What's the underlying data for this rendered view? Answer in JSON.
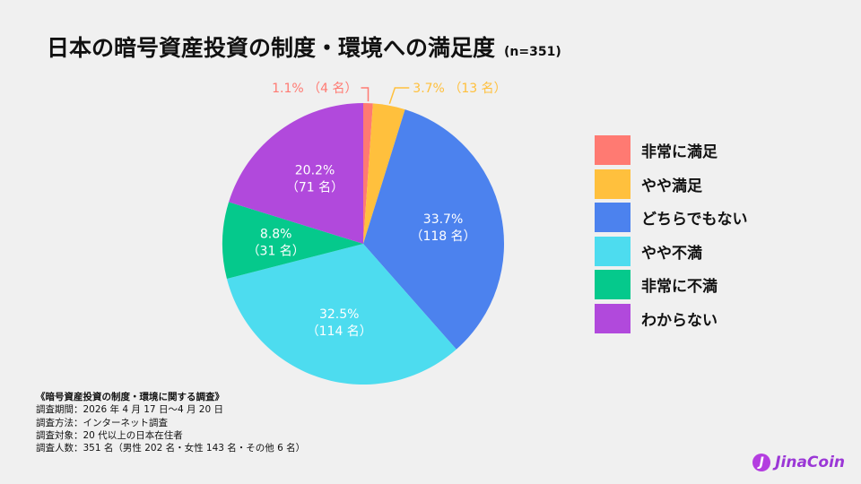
{
  "title": "日本の暗号資産投資の制度・環境への満足度",
  "sample": "(n=351)",
  "chart_data": {
    "type": "pie",
    "title": "日本の暗号資産投資の制度・環境への満足度",
    "slices": [
      {
        "label": "非常に満足",
        "percent": 1.1,
        "count": 4,
        "pct_text": "1.1%",
        "count_text": "（4 名）",
        "color": "#ff7a72"
      },
      {
        "label": "やや満足",
        "percent": 3.7,
        "count": 13,
        "pct_text": "3.7%",
        "count_text": "（13 名）",
        "color": "#ffc03d"
      },
      {
        "label": "どちらでもない",
        "percent": 33.7,
        "count": 118,
        "pct_text": "33.7%",
        "count_text": "（118 名）",
        "color": "#4c82ee"
      },
      {
        "label": "やや不満",
        "percent": 32.5,
        "count": 114,
        "pct_text": "32.5%",
        "count_text": "（114 名）",
        "color": "#4ddcef"
      },
      {
        "label": "非常に不満",
        "percent": 8.8,
        "count": 31,
        "pct_text": "8.8%",
        "count_text": "（31 名）",
        "color": "#05c98c"
      },
      {
        "label": "わからない",
        "percent": 20.2,
        "count": 71,
        "pct_text": "20.2%",
        "count_text": "（71 名）",
        "color": "#b149dc"
      }
    ],
    "legend_position": "right"
  },
  "survey_notes": [
    "《暗号資産投資の制度・環境に関する調査》",
    "調査期間：2026 年 4 月 17 日〜4 月 20 日",
    "調査方法：インターネット調査",
    "調査対象：20 代以上の日本在住者",
    "調査人数：351 名（男性 202 名・女性 143 名・その他 6 名）"
  ],
  "brand": {
    "mark": "J",
    "name": "JinaCoin"
  }
}
